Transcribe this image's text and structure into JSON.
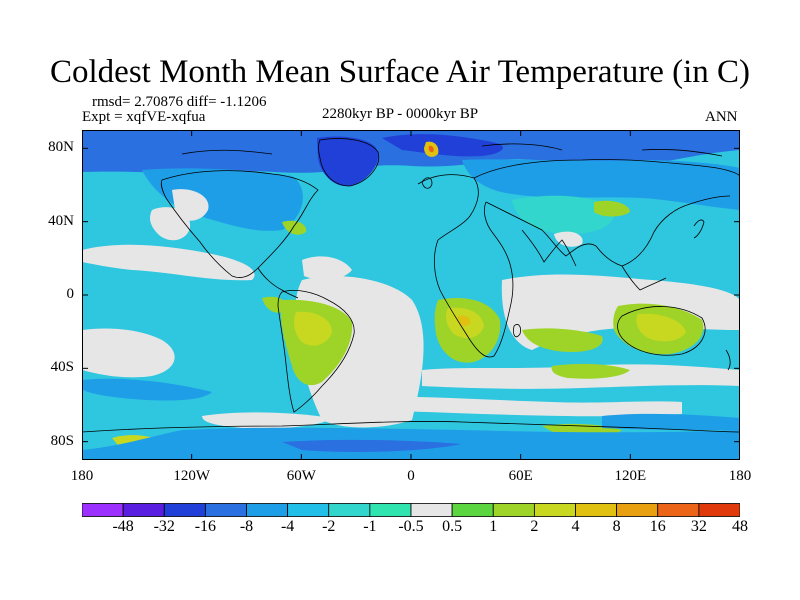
{
  "title": "Coldest Month Mean Surface Air Temperature (in C)",
  "stats_text": "rmsd= 2.70876 diff= -1.1206",
  "expt_text": "Expt = xqfVE-xqfua",
  "period_text": "2280kyr BP - 0000kyr BP",
  "season_text": "ANN",
  "lat_ticks": [
    {
      "label": "80N",
      "lat": 80
    },
    {
      "label": "40N",
      "lat": 40
    },
    {
      "label": "0",
      "lat": 0
    },
    {
      "label": "40S",
      "lat": -40
    },
    {
      "label": "80S",
      "lat": -80
    }
  ],
  "lon_ticks": [
    {
      "label": "180",
      "lon": -180
    },
    {
      "label": "120W",
      "lon": -120
    },
    {
      "label": "60W",
      "lon": -60
    },
    {
      "label": "0",
      "lon": 0
    },
    {
      "label": "60E",
      "lon": 60
    },
    {
      "label": "120E",
      "lon": 120
    },
    {
      "label": "180",
      "lon": 180
    }
  ],
  "colorbar": {
    "colors": [
      "#9b30ff",
      "#5a1ee0",
      "#2040d8",
      "#2a70e0",
      "#1f9ee8",
      "#22bfe8",
      "#33d6cc",
      "#30e4b0",
      "#e6e6e6",
      "#5cd640",
      "#9ed428",
      "#c8d820",
      "#e0c010",
      "#e8a010",
      "#ec6418",
      "#e03a0c"
    ],
    "labels": [
      "-48",
      "-32",
      "-16",
      "-8",
      "-4",
      "-2",
      "-1",
      "-0.5",
      "0.5",
      "1",
      "2",
      "4",
      "8",
      "16",
      "32",
      "48"
    ]
  },
  "map_colors": {
    "ocean_base": "#2fc6df",
    "near_zero": "#e6e6e6",
    "warm_1": "#9ed428",
    "warm_2": "#c8d820",
    "warm_3": "#e0c010",
    "cold_1": "#1f9ee8",
    "cold_2": "#2a70e0",
    "cold_3": "#2040d8",
    "teal": "#33d6cc",
    "coast": "#000000"
  }
}
